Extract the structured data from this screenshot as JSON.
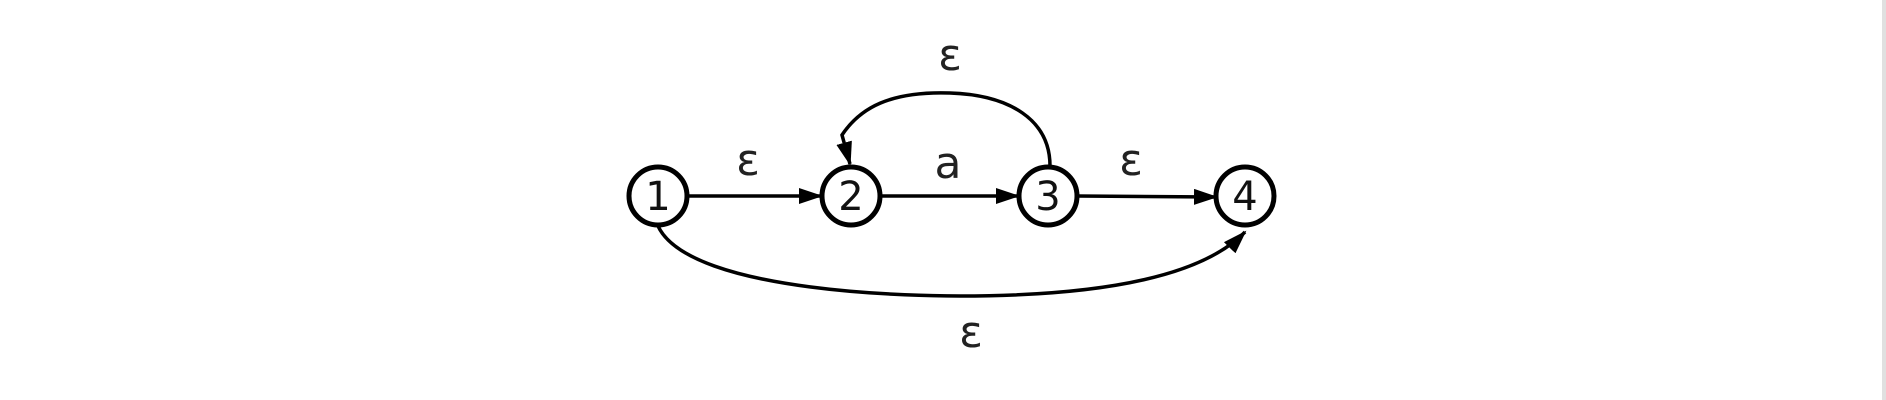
{
  "nodes": [
    {
      "id": "1",
      "label": "1"
    },
    {
      "id": "2",
      "label": "2"
    },
    {
      "id": "3",
      "label": "3"
    },
    {
      "id": "4",
      "label": "4"
    }
  ],
  "edges": [
    {
      "from": "1",
      "to": "2",
      "label": "ε"
    },
    {
      "from": "2",
      "to": "3",
      "label": "a"
    },
    {
      "from": "3",
      "to": "4",
      "label": "ε"
    },
    {
      "from": "3",
      "to": "2",
      "label": "ε"
    },
    {
      "from": "1",
      "to": "4",
      "label": "ε"
    }
  ],
  "colors": {
    "stroke": "#000000",
    "background": "#ffffff"
  }
}
